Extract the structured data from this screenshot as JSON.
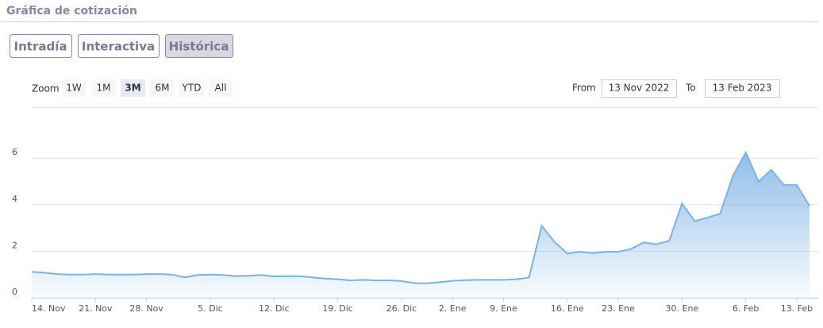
{
  "header": {
    "title": "Gráfica de cotización"
  },
  "tabs": {
    "items": [
      "Intradía",
      "Interactiva",
      "Histórica"
    ],
    "active": 2
  },
  "zoom": {
    "label": "Zoom",
    "options": [
      "1W",
      "1M",
      "3M",
      "6M",
      "YTD",
      "All"
    ],
    "selected": 2
  },
  "range": {
    "from_label": "From",
    "from": "13 Nov 2022",
    "to_label": "To",
    "to": "13 Feb 2023"
  },
  "chart_data": {
    "type": "area",
    "color": "#7cb2e4",
    "categories": [
      "14. Nov",
      null,
      null,
      null,
      null,
      "21. Nov",
      null,
      null,
      null,
      "28. Nov",
      null,
      null,
      null,
      null,
      "5. Dic",
      null,
      null,
      null,
      null,
      "12. Dic",
      null,
      null,
      null,
      null,
      "19. Dic",
      null,
      null,
      null,
      null,
      "26. Dic",
      null,
      null,
      null,
      "2. Ene",
      null,
      null,
      null,
      "9. Ene",
      null,
      null,
      null,
      null,
      "16. Ene",
      null,
      null,
      null,
      "23. Ene",
      null,
      null,
      null,
      null,
      "30. Ene",
      null,
      null,
      null,
      null,
      "6. Feb",
      null,
      null,
      null,
      "13. Feb",
      null
    ],
    "values": [
      1.12,
      1.08,
      1.02,
      1.0,
      1.0,
      1.02,
      1.0,
      1.0,
      1.0,
      1.02,
      1.02,
      1.0,
      0.88,
      0.98,
      1.0,
      0.98,
      0.93,
      0.95,
      0.98,
      0.92,
      0.93,
      0.93,
      0.88,
      0.83,
      0.8,
      0.75,
      0.77,
      0.75,
      0.75,
      0.72,
      0.63,
      0.62,
      0.67,
      0.73,
      0.76,
      0.77,
      0.77,
      0.77,
      0.8,
      0.87,
      3.1,
      2.4,
      1.9,
      1.98,
      1.92,
      1.98,
      1.98,
      2.1,
      2.38,
      2.3,
      2.45,
      4.05,
      3.3,
      3.45,
      3.62,
      5.25,
      6.25,
      5.0,
      5.5,
      4.85,
      4.85,
      3.95
    ],
    "ylim": [
      0,
      8
    ],
    "yticks": [
      0,
      2,
      4,
      6
    ],
    "grid": true
  }
}
